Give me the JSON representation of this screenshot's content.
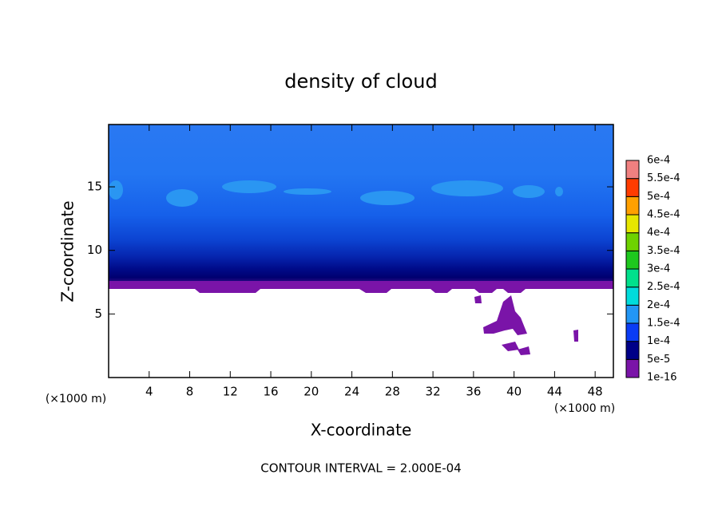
{
  "chart_data": {
    "type": "contour",
    "title": "density of cloud",
    "xlabel": "X-coordinate",
    "ylabel": "Z-coordinate",
    "x_unit": "(×1000 m)",
    "y_unit": "(×1000 m)",
    "xlim": [
      0,
      49.8
    ],
    "ylim": [
      0,
      19.9
    ],
    "xticks": [
      4,
      8,
      12,
      16,
      20,
      24,
      28,
      32,
      36,
      40,
      44,
      48
    ],
    "yticks": [
      5,
      10,
      15
    ],
    "colorbar": {
      "levels": [
        {
          "value": 1e-16,
          "label": "1e-16"
        },
        {
          "value": 5e-05,
          "label": "5e-5"
        },
        {
          "value": 0.0001,
          "label": "1e-4"
        },
        {
          "value": 0.00015,
          "label": "1.5e-4"
        },
        {
          "value": 0.0002,
          "label": "2e-4"
        },
        {
          "value": 0.00025,
          "label": "2.5e-4"
        },
        {
          "value": 0.0003,
          "label": "3e-4"
        },
        {
          "value": 0.00035,
          "label": "3.5e-4"
        },
        {
          "value": 0.0004,
          "label": "4e-4"
        },
        {
          "value": 0.00045,
          "label": "4.5e-4"
        },
        {
          "value": 0.0005,
          "label": "5e-4"
        },
        {
          "value": 0.00055,
          "label": "5.5e-4"
        },
        {
          "value": 0.0006,
          "label": "6e-4"
        }
      ],
      "colors": [
        "#7a14a8",
        "#000088",
        "#0a3cf5",
        "#2296f5",
        "#00dcdc",
        "#00e08c",
        "#1ec81e",
        "#6ed200",
        "#e6e600",
        "#ffa000",
        "#ff3c00",
        "#f08080"
      ]
    },
    "footer": "CONTOUR INTERVAL = 2.000E-04"
  }
}
